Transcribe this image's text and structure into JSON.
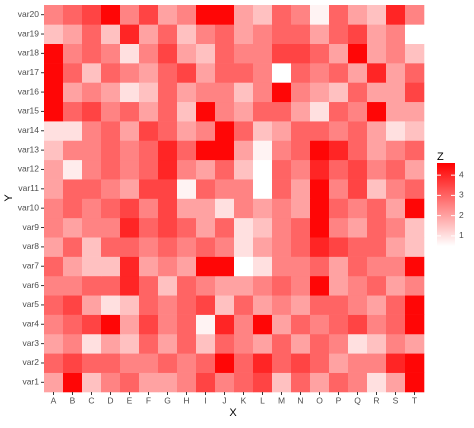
{
  "chart_data": {
    "type": "heatmap",
    "x_label": "X",
    "y_label": "Y",
    "legend_title": "Z",
    "x": [
      "A",
      "B",
      "C",
      "D",
      "E",
      "F",
      "G",
      "H",
      "I",
      "J",
      "K",
      "L",
      "M",
      "N",
      "O",
      "P",
      "Q",
      "R",
      "S",
      "T"
    ],
    "y": [
      "var1",
      "var2",
      "var3",
      "var4",
      "var5",
      "var6",
      "var7",
      "var8",
      "var9",
      "var10",
      "var11",
      "var12",
      "var13",
      "var14",
      "var15",
      "var16",
      "var17",
      "var18",
      "var19",
      "var20"
    ],
    "z": [
      [
        2,
        4.5,
        1.5,
        2.5,
        3,
        2,
        2,
        2.5,
        3.5,
        2.5,
        3,
        3.5,
        1.5,
        3,
        2,
        3,
        2.5,
        1,
        2,
        4.5
      ],
      [
        3,
        3.5,
        3,
        3,
        2.5,
        2.5,
        3,
        2.5,
        3,
        4.5,
        3,
        4,
        3,
        3.5,
        3,
        2,
        2.5,
        2.5,
        4,
        4.5
      ],
      [
        2,
        2.5,
        1,
        2,
        1.5,
        3,
        2,
        3,
        1.5,
        3,
        2.5,
        2,
        3,
        2,
        3,
        2.5,
        1,
        1.5,
        2.5,
        2
      ],
      [
        2.5,
        3,
        3.5,
        4.5,
        2,
        3.5,
        2.5,
        3,
        0.7,
        4,
        2.5,
        4.5,
        2,
        3,
        2.5,
        3,
        3.5,
        2.5,
        3,
        4.5
      ],
      [
        3,
        3.5,
        2,
        1,
        1.5,
        3,
        2.5,
        3,
        3.5,
        1.5,
        3,
        2,
        2.5,
        2,
        3,
        3,
        2.5,
        2,
        3,
        4.5
      ],
      [
        2.5,
        2.5,
        3,
        3,
        4,
        3,
        1.5,
        3,
        2.5,
        2,
        2,
        2.5,
        3,
        2.5,
        4.5,
        2,
        2.5,
        3,
        2,
        2.5
      ],
      [
        3,
        2,
        1.5,
        1.5,
        4,
        2,
        2.5,
        2,
        4.5,
        4.5,
        0.5,
        1,
        2.5,
        2.5,
        3,
        2,
        3,
        2.5,
        2.5,
        4.5
      ],
      [
        2,
        3,
        1.5,
        3,
        3,
        2.5,
        3,
        2.5,
        3,
        2.5,
        1,
        2,
        2.5,
        3,
        4,
        3.5,
        3,
        3,
        2,
        1.5
      ],
      [
        2.5,
        2,
        2.5,
        2.5,
        4,
        3,
        3.5,
        3,
        2,
        3,
        1,
        1.5,
        2.5,
        3,
        4.5,
        2.5,
        2,
        3,
        2.5,
        1.5
      ],
      [
        2.5,
        3,
        2.5,
        3,
        3.5,
        2.5,
        3.5,
        2,
        2,
        1,
        2.5,
        2,
        2.5,
        2,
        4.5,
        3,
        2.5,
        3,
        2,
        4.5
      ],
      [
        2,
        3,
        3,
        2.5,
        2,
        3.5,
        3.5,
        0.7,
        3,
        2.5,
        2.5,
        0.5,
        3,
        2,
        4.5,
        2.5,
        3.5,
        1.5,
        2.5,
        3
      ],
      [
        2,
        0.8,
        2.5,
        3,
        2.5,
        3,
        4,
        2.5,
        2,
        3,
        1.5,
        0.5,
        3,
        2.5,
        4,
        3,
        3.5,
        2.5,
        3,
        2
      ],
      [
        1.5,
        2.5,
        2.5,
        3,
        2.5,
        3,
        4,
        3,
        4.5,
        4.5,
        2,
        0.7,
        2.5,
        3,
        4.5,
        4,
        3,
        2,
        2.5,
        3
      ],
      [
        1,
        1,
        2.5,
        3,
        2,
        3.5,
        3,
        2,
        2.5,
        4.5,
        3,
        1.5,
        2,
        3,
        3,
        2.5,
        3,
        2,
        1,
        1.5
      ],
      [
        4.5,
        3,
        3.5,
        2.5,
        3,
        2,
        3,
        1.5,
        4.5,
        2.5,
        2,
        3,
        3,
        2,
        1,
        3,
        2.5,
        4.5,
        2,
        2
      ],
      [
        4.5,
        2,
        2.5,
        2,
        1,
        1.5,
        3,
        2,
        2.5,
        2.5,
        1.5,
        2.5,
        4.5,
        2.5,
        2,
        1.5,
        3,
        2,
        2,
        3.5
      ],
      [
        4.5,
        3,
        1.5,
        3,
        2.5,
        2,
        3,
        3.5,
        2,
        3,
        3,
        2.5,
        0.5,
        3,
        2.5,
        3,
        2,
        4,
        2,
        3
      ],
      [
        4.5,
        2.5,
        3,
        2.5,
        1,
        2.5,
        3.5,
        2,
        1.5,
        3,
        2.5,
        2.5,
        3.5,
        3.5,
        3,
        2,
        4.5,
        2,
        2.5,
        1.5
      ],
      [
        1.5,
        2,
        3,
        1.5,
        4,
        2,
        3,
        1.5,
        2.5,
        3,
        2,
        2.5,
        3,
        3,
        2,
        3,
        3.5,
        2,
        2.5,
        0.5
      ],
      [
        2.5,
        3,
        3.5,
        4.5,
        2.5,
        3.5,
        2,
        2.5,
        4.5,
        4.5,
        2,
        1.5,
        3,
        2.5,
        0.7,
        3,
        2,
        1.5,
        4,
        2.5
      ]
    ],
    "zlim": [
      0.5,
      4.6
    ],
    "zticks": [
      1,
      2,
      3,
      4
    ],
    "low_color": "#ffffff",
    "high_color": "#ff0000",
    "panel_color": "#ebebeb"
  }
}
